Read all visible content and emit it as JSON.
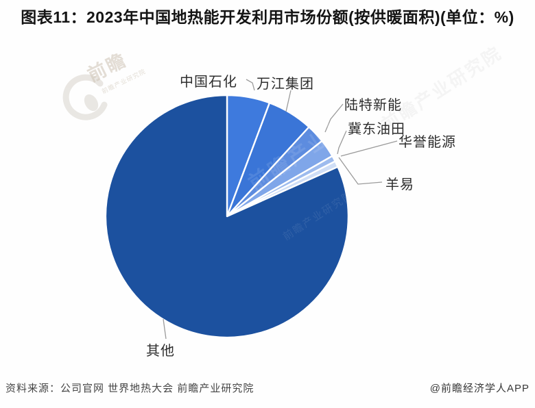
{
  "title": {
    "text": "图表11：2023年中国地热能开发利用市场份额(按供暖面积)(单位：%)"
  },
  "footer": {
    "source": "资料来源：公司官网 世界地热大会 前瞻产业研究院",
    "credit": "@前瞻经济学人APP"
  },
  "watermark": {
    "logo_text": "前瞻",
    "overlay_text": "前瞻产业研究院"
  },
  "chart_data": {
    "type": "pie",
    "title": "图表11：2023年中国地热能开发利用市场份额(按供暖面积)(单位：%)",
    "unit": "%",
    "legend_position": "none",
    "label_style": "outside-callout-lines",
    "start_angle_deg": 0,
    "direction": "clockwise-from-top",
    "separator_color": "#ffffff",
    "labels": [
      "中国石化",
      "万江集团",
      "陆特新能",
      "冀东油田",
      "华誉能源",
      "羊易",
      "其他"
    ],
    "values": [
      5.7,
      6.1,
      2.5,
      2.4,
      0.8,
      0.8,
      81.7
    ],
    "colors": [
      "#3e7add",
      "#3a75d7",
      "#5d8cdf",
      "#7fa6e9",
      "#9dbbee",
      "#cfdef6",
      "#1c519f"
    ]
  }
}
